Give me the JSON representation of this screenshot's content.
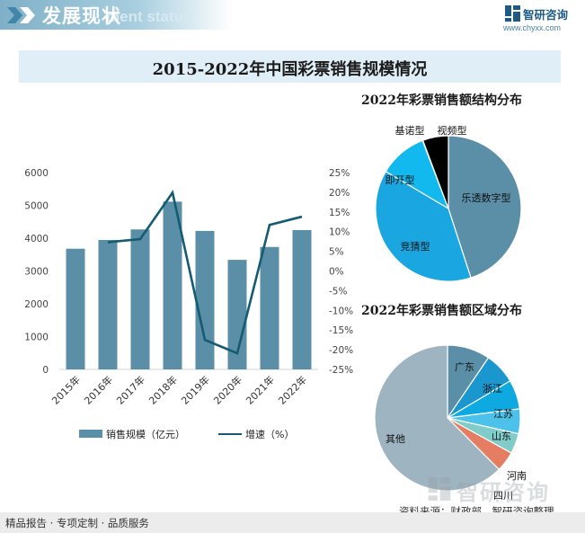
{
  "header": {
    "title": "发展现状",
    "subtitle": "ment status",
    "brand_name": "智研咨询",
    "brand_url": "www.chyxx.com"
  },
  "main_title": "2015-2022年中国彩票销售规模情况",
  "footer": {
    "left_text": "精品报告 · 专项定制 · 品质服务",
    "source": "资料来源：财政部、智研咨询整理",
    "watermark": "智研咨询"
  },
  "colors": {
    "bar": "#5b8fa7",
    "line": "#155b73",
    "title_bg": "#dfeef7",
    "pie1": [
      "#5b8fa7",
      "#1aa6e0",
      "#12b9ee",
      "#7ccff2"
    ],
    "pie2": [
      "#5b8fa7",
      "#1b97cf",
      "#0fa9e1",
      "#4cc2ea",
      "#7fccc9",
      "#e47d62",
      "#9eb4c1"
    ]
  },
  "chart_data": [
    {
      "type": "bar+line",
      "categories": [
        "2015年",
        "2016年",
        "2017年",
        "2018年",
        "2019年",
        "2020年",
        "2021年",
        "2022年"
      ],
      "series": [
        {
          "name": "销售规模（亿元）",
          "type": "bar",
          "axis": "left",
          "values": [
            3679,
            3946,
            4267,
            5114,
            4221,
            3340,
            3732,
            4247
          ]
        },
        {
          "name": "增速（%）",
          "type": "line",
          "axis": "right",
          "values": [
            null,
            7.3,
            8.1,
            19.9,
            -17.5,
            -20.9,
            11.7,
            13.8
          ]
        }
      ],
      "y_left": {
        "ylim": [
          0,
          6000
        ],
        "ticks": [
          "0",
          "1000",
          "2000",
          "3000",
          "4000",
          "5000",
          "6000"
        ]
      },
      "y_right": {
        "ylim": [
          -25,
          25
        ],
        "ticks": [
          "-25%",
          "-20%",
          "-15%",
          "-10%",
          "-5%",
          "0%",
          "5%",
          "10%",
          "15%",
          "20%",
          "25%"
        ]
      },
      "legend": "bottom",
      "grid": false
    },
    {
      "type": "pie",
      "title": "2022年彩票销售额结构分布",
      "labels": [
        "乐透数字型",
        "竞猜型",
        "即开型",
        "基诺型",
        "视频型"
      ],
      "values": [
        45.0,
        38.5,
        10.7,
        0.1,
        5.7
      ],
      "label_color": [
        "#111111",
        "#111111",
        "#111111",
        "#111111",
        "#111111"
      ]
    },
    {
      "type": "pie",
      "title": "2022年彩票销售额区域分布",
      "labels": [
        "广东",
        "浙江",
        "江苏",
        "山东",
        "河南",
        "四川",
        "其他"
      ],
      "values": [
        9.5,
        7.0,
        6.5,
        5.5,
        4.5,
        4.5,
        62.5
      ]
    }
  ]
}
